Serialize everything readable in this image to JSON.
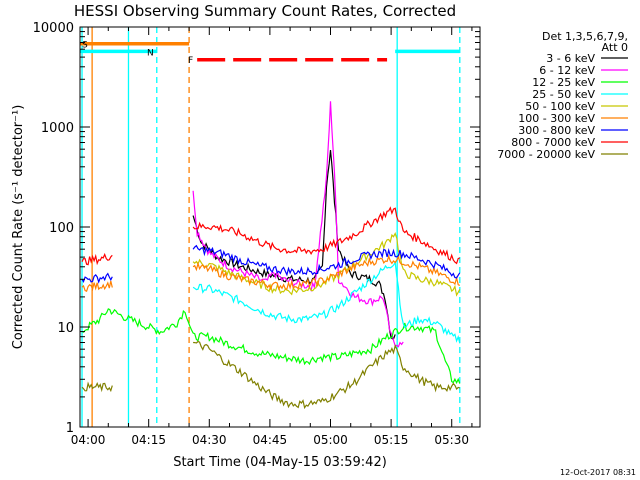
{
  "chart_data": {
    "type": "line",
    "title": "HESSI Observing Summary Count Rates, Corrected",
    "xlabel": "Start Time (04-May-15 03:59:42)",
    "ylabel": "Corrected Count Rate (s⁻¹ detector⁻¹)",
    "xlim_minutes": [
      -2,
      97
    ],
    "ylim": [
      1,
      10000
    ],
    "yscale": "log",
    "grid": false,
    "x_ticks": [
      {
        "m": 0,
        "label": "04:00"
      },
      {
        "m": 15,
        "label": "04:15"
      },
      {
        "m": 30,
        "label": "04:30"
      },
      {
        "m": 45,
        "label": "04:45"
      },
      {
        "m": 60,
        "label": "05:00"
      },
      {
        "m": 75,
        "label": "05:15"
      },
      {
        "m": 90,
        "label": "05:30"
      }
    ],
    "y_ticks": [
      {
        "v": 1,
        "label": "1"
      },
      {
        "v": 10,
        "label": "10"
      },
      {
        "v": 100,
        "label": "100"
      },
      {
        "v": 1000,
        "label": "1000"
      },
      {
        "v": 10000,
        "label": "10000"
      }
    ],
    "legend": {
      "position": "right",
      "header": [
        "Det 1,3,5,6,7,9,",
        "Att 0"
      ]
    },
    "series": [
      {
        "name": "3 - 6 keV",
        "color": "#000000",
        "points": [
          [
            26,
            130
          ],
          [
            28,
            70
          ],
          [
            32,
            50
          ],
          [
            38,
            40
          ],
          [
            44,
            34
          ],
          [
            50,
            30
          ],
          [
            56,
            29
          ],
          [
            58,
            40
          ],
          [
            59,
            260
          ],
          [
            60,
            600
          ],
          [
            61,
            180
          ],
          [
            62,
            60
          ],
          [
            65,
            34
          ],
          [
            70,
            30
          ],
          [
            72,
            27
          ],
          [
            73.5,
            20
          ],
          [
            75,
            8
          ],
          [
            76,
            8
          ]
        ]
      },
      {
        "name": "6 - 12 keV",
        "color": "#ff00ff",
        "points": [
          [
            26,
            230
          ],
          [
            27,
            90
          ],
          [
            30,
            55
          ],
          [
            35,
            40
          ],
          [
            40,
            33
          ],
          [
            44,
            28
          ],
          [
            46,
            35
          ],
          [
            48,
            30
          ],
          [
            52,
            27
          ],
          [
            56,
            25
          ],
          [
            59,
            300
          ],
          [
            60,
            1700
          ],
          [
            61,
            350
          ],
          [
            62,
            30
          ],
          [
            66,
            20
          ],
          [
            70,
            18
          ],
          [
            73,
            20
          ],
          [
            75,
            8
          ],
          [
            76,
            7
          ],
          [
            78,
            6.5
          ]
        ]
      },
      {
        "name": "12 - 25 keV",
        "color": "#00ff00",
        "points": [
          [
            -1.5,
            9
          ],
          [
            0,
            10
          ],
          [
            3,
            12
          ],
          [
            5,
            15
          ],
          [
            10,
            12
          ],
          [
            15,
            10
          ],
          [
            18,
            9
          ],
          [
            22,
            11
          ],
          [
            24,
            15
          ],
          [
            26,
            8
          ],
          [
            30,
            8
          ],
          [
            36,
            6.5
          ],
          [
            42,
            5.5
          ],
          [
            48,
            5
          ],
          [
            54,
            4.6
          ],
          [
            58,
            5
          ],
          [
            62,
            5
          ],
          [
            66,
            5.5
          ],
          [
            70,
            6
          ],
          [
            74,
            8
          ],
          [
            76,
            9
          ],
          [
            78,
            10
          ],
          [
            82,
            10
          ],
          [
            86,
            9
          ],
          [
            88,
            5
          ],
          [
            90,
            3
          ],
          [
            92,
            2.8
          ]
        ]
      },
      {
        "name": "25 - 50 keV",
        "color": "#00ffff",
        "points": [
          [
            26,
            25
          ],
          [
            30,
            24
          ],
          [
            34,
            21
          ],
          [
            38,
            18
          ],
          [
            42,
            15
          ],
          [
            46,
            13
          ],
          [
            50,
            12
          ],
          [
            54,
            12
          ],
          [
            58,
            13
          ],
          [
            62,
            16
          ],
          [
            66,
            22
          ],
          [
            70,
            30
          ],
          [
            74,
            40
          ],
          [
            76,
            45
          ],
          [
            78,
            10
          ],
          [
            82,
            12
          ],
          [
            86,
            11
          ],
          [
            88,
            9.5
          ],
          [
            90,
            8
          ],
          [
            92,
            7.5
          ]
        ]
      },
      {
        "name": "50 - 100 keV",
        "color": "#c8c800",
        "points": [
          [
            26,
            45
          ],
          [
            30,
            42
          ],
          [
            34,
            36
          ],
          [
            38,
            31
          ],
          [
            42,
            27
          ],
          [
            46,
            24
          ],
          [
            50,
            23
          ],
          [
            54,
            24
          ],
          [
            58,
            27
          ],
          [
            62,
            33
          ],
          [
            66,
            43
          ],
          [
            70,
            55
          ],
          [
            74,
            70
          ],
          [
            76,
            90
          ],
          [
            78,
            35
          ],
          [
            82,
            30
          ],
          [
            86,
            28
          ],
          [
            90,
            24
          ],
          [
            92,
            22
          ]
        ]
      },
      {
        "name": "100 - 300 keV",
        "color": "#ff8000",
        "points": [
          [
            -1.5,
            25
          ],
          [
            0,
            25
          ],
          [
            3,
            26
          ],
          [
            6,
            27
          ],
          [
            26,
            40
          ],
          [
            30,
            38
          ],
          [
            34,
            33
          ],
          [
            38,
            30
          ],
          [
            42,
            28
          ],
          [
            46,
            26
          ],
          [
            50,
            26
          ],
          [
            54,
            27
          ],
          [
            58,
            29
          ],
          [
            62,
            34
          ],
          [
            66,
            40
          ],
          [
            70,
            45
          ],
          [
            74,
            48
          ],
          [
            76,
            47
          ],
          [
            78,
            45
          ],
          [
            82,
            40
          ],
          [
            86,
            35
          ],
          [
            90,
            30
          ],
          [
            92,
            28
          ]
        ]
      },
      {
        "name": "300 - 800 keV",
        "color": "#0000ff",
        "points": [
          [
            -1.5,
            30
          ],
          [
            0,
            30
          ],
          [
            3,
            31
          ],
          [
            6,
            32
          ],
          [
            26,
            60
          ],
          [
            30,
            58
          ],
          [
            34,
            53
          ],
          [
            38,
            46
          ],
          [
            42,
            41
          ],
          [
            46,
            38
          ],
          [
            50,
            36
          ],
          [
            54,
            36
          ],
          [
            58,
            38
          ],
          [
            62,
            42
          ],
          [
            66,
            48
          ],
          [
            70,
            53
          ],
          [
            74,
            55
          ],
          [
            76,
            55
          ],
          [
            78,
            54
          ],
          [
            82,
            48
          ],
          [
            86,
            42
          ],
          [
            90,
            35
          ],
          [
            92,
            33
          ]
        ]
      },
      {
        "name": "800 - 7000 keV",
        "color": "#ff0000",
        "points": [
          [
            -1.5,
            45
          ],
          [
            0,
            46
          ],
          [
            3,
            48
          ],
          [
            6,
            52
          ],
          [
            26,
            100
          ],
          [
            30,
            102
          ],
          [
            34,
            95
          ],
          [
            38,
            85
          ],
          [
            42,
            72
          ],
          [
            46,
            62
          ],
          [
            50,
            58
          ],
          [
            54,
            57
          ],
          [
            58,
            60
          ],
          [
            62,
            70
          ],
          [
            66,
            85
          ],
          [
            70,
            110
          ],
          [
            74,
            140
          ],
          [
            76,
            150
          ],
          [
            78,
            90
          ],
          [
            82,
            75
          ],
          [
            86,
            60
          ],
          [
            90,
            50
          ],
          [
            92,
            45
          ]
        ]
      },
      {
        "name": "7000 - 20000 keV",
        "color": "#808000",
        "points": [
          [
            -1.5,
            2.5
          ],
          [
            0,
            2.5
          ],
          [
            3,
            2.5
          ],
          [
            6,
            2.5
          ],
          [
            26,
            7
          ],
          [
            30,
            6
          ],
          [
            34,
            4.5
          ],
          [
            38,
            3.5
          ],
          [
            42,
            2.6
          ],
          [
            46,
            2
          ],
          [
            50,
            1.7
          ],
          [
            54,
            1.7
          ],
          [
            58,
            1.8
          ],
          [
            62,
            2.2
          ],
          [
            66,
            2.8
          ],
          [
            70,
            4
          ],
          [
            74,
            5.5
          ],
          [
            76,
            6
          ],
          [
            78,
            4
          ],
          [
            82,
            3
          ],
          [
            86,
            2.5
          ],
          [
            90,
            2.5
          ],
          [
            92,
            2.4
          ]
        ]
      }
    ],
    "flags": [
      {
        "label": "S",
        "color": "#ff8000",
        "x0": -2,
        "x1": 25,
        "y": 6800,
        "dashed": false
      },
      {
        "label": "N",
        "color": "#00ffff",
        "x0": -2,
        "x1": 17,
        "y": 5700,
        "dashed": false
      },
      {
        "label": "",
        "color": "#00ffff",
        "x0": 76,
        "x1": 92,
        "y": 5700,
        "dashed": false
      },
      {
        "label": "F",
        "color": "#ff0000",
        "x0": 27,
        "x1": 74,
        "y": 4700,
        "dashed": true
      }
    ],
    "vlines": [
      {
        "m": -1.5,
        "color": "#00ffff",
        "dashed": false
      },
      {
        "m": 1,
        "color": "#ff8000",
        "dashed": false
      },
      {
        "m": 10,
        "color": "#00ffff",
        "dashed": false
      },
      {
        "m": 17,
        "color": "#00ffff",
        "dashed": true
      },
      {
        "m": 25,
        "color": "#ff8000",
        "dashed": true
      },
      {
        "m": 76.5,
        "color": "#00ffff",
        "dashed": false
      },
      {
        "m": 92,
        "color": "#00ffff",
        "dashed": true
      }
    ]
  },
  "footer_date": "12-Oct-2017 08:31"
}
